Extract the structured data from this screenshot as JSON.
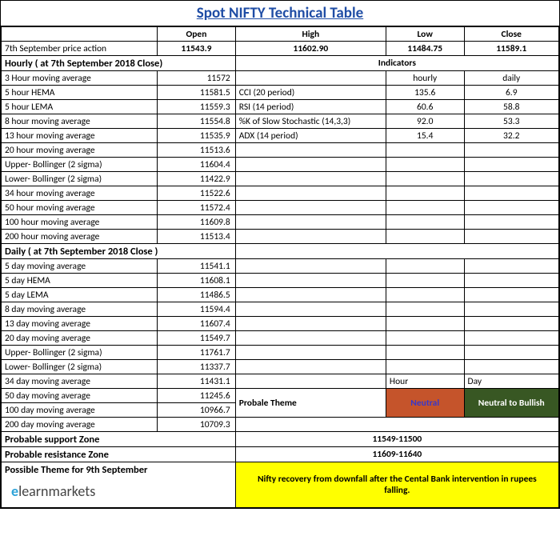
{
  "title": "Spot NIFTY Technical Table",
  "columns": {
    "open": "Open",
    "high": "High",
    "low": "Low",
    "close": "Close"
  },
  "price_action": {
    "label": "7th  September price action",
    "open": "11543.9",
    "high": "11602.90",
    "low": "11484.75",
    "close": "11589.1"
  },
  "hourly_section": "Hourly ( at 7th  September 2018 Close)",
  "hourly": [
    {
      "l": "3 Hour moving average",
      "v": "11572"
    },
    {
      "l": "5 hour HEMA",
      "v": "11581.5"
    },
    {
      "l": "5 hour LEMA",
      "v": "11559.3"
    },
    {
      "l": "8 hour moving average",
      "v": "11554.8"
    },
    {
      "l": "13 hour moving average",
      "v": "11535.9"
    },
    {
      "l": "20 hour moving average",
      "v": "11513.6"
    },
    {
      "l": "Upper- Bollinger (2 sigma)",
      "v": "11604.4"
    },
    {
      "l": "Lower- Bollinger (2 sigma)",
      "v": "11422.9"
    },
    {
      "l": "34 hour moving average",
      "v": "11522.6"
    },
    {
      "l": "50 hour moving average",
      "v": "11572.4"
    },
    {
      "l": "100 hour moving average",
      "v": "11609.8"
    },
    {
      "l": "200 hour moving average",
      "v": "11513.4"
    }
  ],
  "indicators_header": "Indicators",
  "indicators_cols": {
    "hourly": "hourly",
    "daily": "daily"
  },
  "indicators": [
    {
      "l": "CCI (20 period)",
      "h": "135.6",
      "d": "6.9"
    },
    {
      "l": "RSI (14 period)",
      "h": "60.6",
      "d": "58.8"
    },
    {
      "l": "%K of Slow Stochastic (14,3,3)",
      "h": "92.0",
      "d": "53.3"
    },
    {
      "l": "ADX (14 period)",
      "h": "15.4",
      "d": "32.2"
    }
  ],
  "daily_section": "Daily ( at 7th September 2018 Close )",
  "daily": [
    {
      "l": "5 day moving average",
      "v": "11541.1"
    },
    {
      "l": "5 day HEMA",
      "v": "11608.1"
    },
    {
      "l": "5 day LEMA",
      "v": "11486.5"
    },
    {
      "l": "8 day moving average",
      "v": "11594.4"
    },
    {
      "l": "13 day moving average",
      "v": "11607.4"
    },
    {
      "l": "20 day moving average",
      "v": "11549.7"
    },
    {
      "l": "Upper- Bollinger (2 sigma)",
      "v": "11761.7"
    },
    {
      "l": "Lower- Bollinger (2 sigma)",
      "v": "11337.7"
    },
    {
      "l": "34 day moving average",
      "v": "11431.1"
    },
    {
      "l": "50 day moving average",
      "v": "11245.6"
    },
    {
      "l": "100 day moving average",
      "v": "10966.7"
    },
    {
      "l": "200 day moving average",
      "v": "10709.3"
    }
  ],
  "theme_label": "Probale Theme",
  "theme_cols": {
    "hour": "Hour",
    "day": "Day"
  },
  "theme_vals": {
    "hour": "Neutral",
    "day": "Neutral to Bullish"
  },
  "support": {
    "label": "Probable support Zone",
    "val": "11549-11500"
  },
  "resistance": {
    "label": "Probable resistance Zone",
    "val": "11609-11640"
  },
  "possible_theme_label": "Possible Theme for 9th September",
  "theme_text": "Nifty recovery from downfall after the Cental Bank intervention in rupees falling.",
  "logo_pre": "e",
  "logo_post": "learnmarkets",
  "style": {
    "title_color": "#1f4da5",
    "neutral_bg": "#c5542b",
    "neutral_fg": "#3838c9",
    "bullish_bg": "#385723",
    "bullish_fg": "#ffffff",
    "highlight_bg": "#ffff00",
    "title_fontsize": "19px",
    "row_fontsize": "11.5px"
  }
}
